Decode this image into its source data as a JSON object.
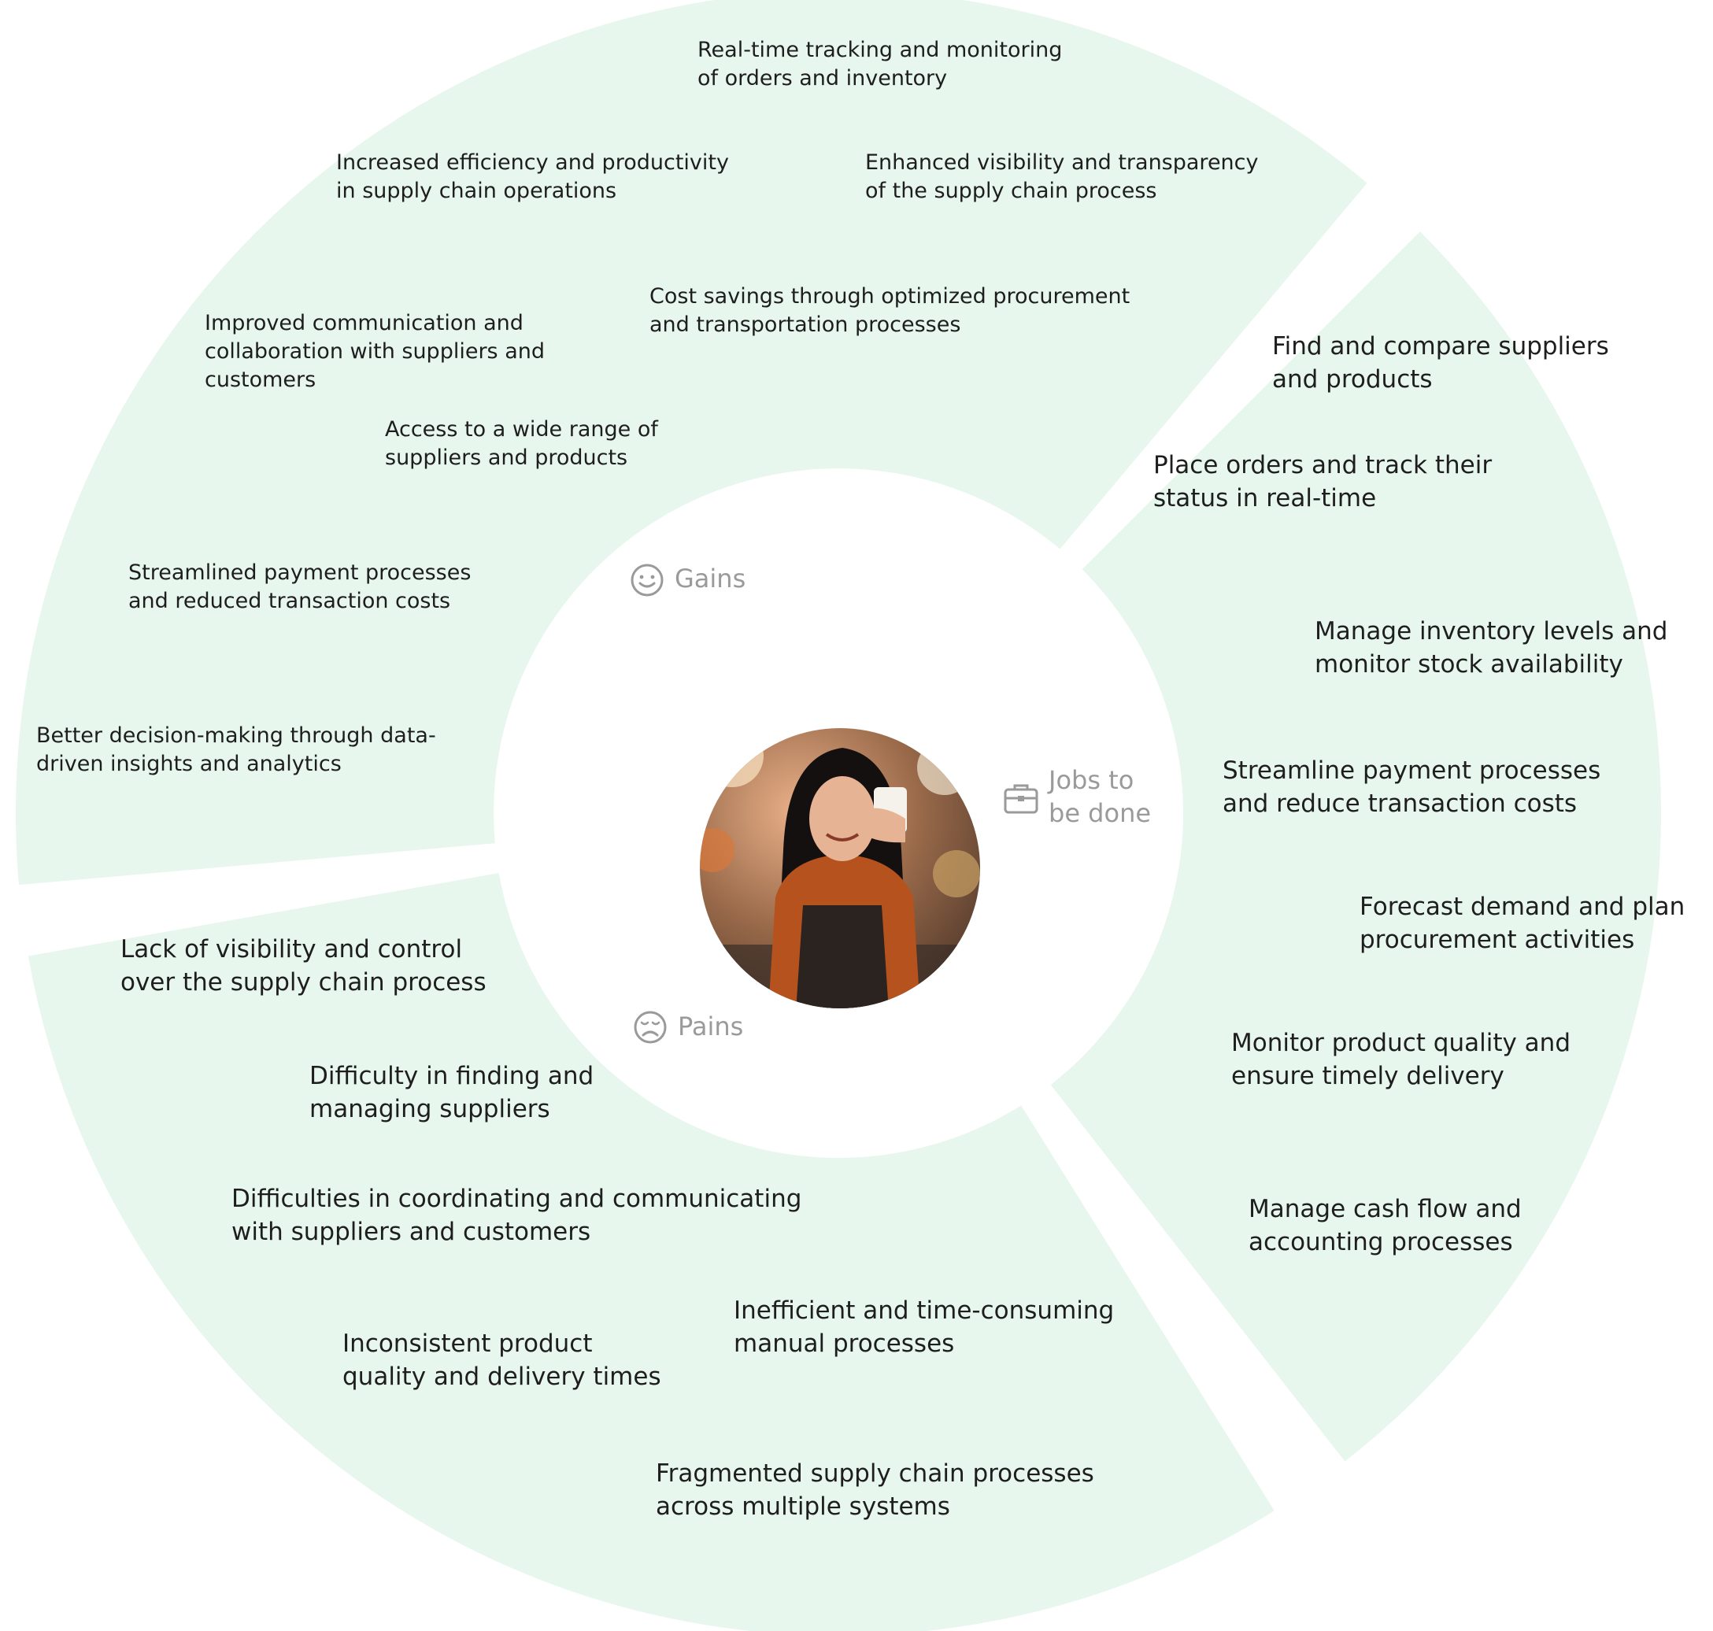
{
  "colors": {
    "segment_fill": "#e7f7ee",
    "label_gray": "#9a9a9a",
    "text": "#1e1e1e"
  },
  "segments": {
    "gains": {
      "label": "Gains",
      "icon": "smile-icon",
      "items": [
        "Real-time tracking and monitoring\nof orders and inventory",
        "Increased efficiency and productivity\nin supply chain operations",
        "Enhanced visibility and transparency\nof the supply chain process",
        "Cost savings through optimized procurement\nand transportation processes",
        "Improved communication and\ncollaboration with suppliers and\ncustomers",
        "Access to a wide range of\nsuppliers and products",
        "Streamlined payment processes\nand reduced transaction costs",
        "Better decision-making through data-\ndriven insights and analytics"
      ]
    },
    "jobs": {
      "label": "Jobs to\nbe done",
      "icon": "briefcase-icon",
      "items": [
        "Find and compare suppliers\nand products",
        "Place orders and track their\nstatus in real-time",
        "Manage inventory levels and\nmonitor stock availability",
        "Streamline payment processes\nand reduce transaction costs",
        "Forecast demand and plan\nprocurement activities",
        "Monitor product quality and\nensure timely delivery",
        "Manage cash flow and\naccounting processes"
      ]
    },
    "pains": {
      "label": "Pains",
      "icon": "sad-face-icon",
      "items": [
        "Lack of visibility and control\nover the supply chain process",
        "Difficulty in finding and\nmanaging suppliers",
        "Difficulties in coordinating and communicating\nwith suppliers and customers",
        "Inconsistent product\nquality and delivery times",
        "Inefficient and time-consuming\nmanual processes",
        "Fragmented supply chain processes\nacross multiple systems"
      ]
    }
  }
}
